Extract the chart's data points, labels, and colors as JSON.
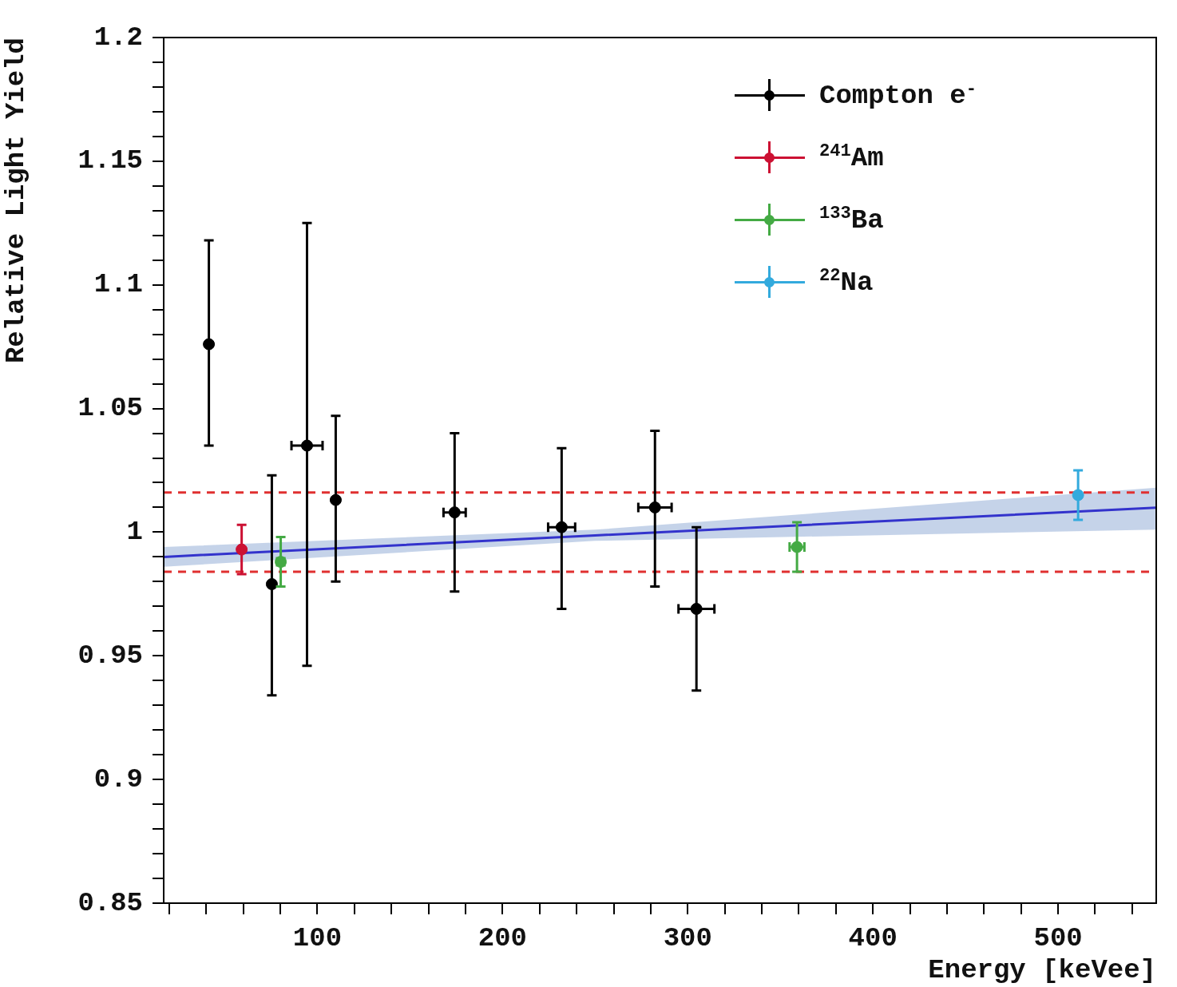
{
  "chart_data": {
    "type": "scatter",
    "xlabel": "Energy [keVee]",
    "ylabel": "Relative Light Yield",
    "xlim": [
      17,
      553
    ],
    "ylim": [
      0.85,
      1.2
    ],
    "xticks": [
      {
        "value": 20,
        "label": null
      },
      {
        "value": 40,
        "label": null
      },
      {
        "value": 60,
        "label": null
      },
      {
        "value": 80,
        "label": null
      },
      100,
      {
        "value": 120,
        "label": null
      },
      {
        "value": 140,
        "label": null
      },
      {
        "value": 160,
        "label": null
      },
      {
        "value": 180,
        "label": null
      },
      200,
      {
        "value": 220,
        "label": null
      },
      {
        "value": 240,
        "label": null
      },
      {
        "value": 260,
        "label": null
      },
      {
        "value": 280,
        "label": null
      },
      300,
      {
        "value": 320,
        "label": null
      },
      {
        "value": 340,
        "label": null
      },
      {
        "value": 360,
        "label": null
      },
      {
        "value": 380,
        "label": null
      },
      400,
      {
        "value": 420,
        "label": null
      },
      {
        "value": 440,
        "label": null
      },
      {
        "value": 460,
        "label": null
      },
      {
        "value": 480,
        "label": null
      },
      500,
      {
        "value": 520,
        "label": null
      },
      {
        "value": 540,
        "label": null
      }
    ],
    "yticks": [
      {
        "value": 0.85,
        "label": "0.85"
      },
      {
        "value": 0.86,
        "label": null
      },
      {
        "value": 0.87,
        "label": null
      },
      {
        "value": 0.88,
        "label": null
      },
      {
        "value": 0.89,
        "label": null
      },
      {
        "value": 0.9,
        "label": "0.9"
      },
      {
        "value": 0.91,
        "label": null
      },
      {
        "value": 0.92,
        "label": null
      },
      {
        "value": 0.93,
        "label": null
      },
      {
        "value": 0.94,
        "label": null
      },
      {
        "value": 0.95,
        "label": "0.95"
      },
      {
        "value": 0.96,
        "label": null
      },
      {
        "value": 0.97,
        "label": null
      },
      {
        "value": 0.98,
        "label": null
      },
      {
        "value": 0.99,
        "label": null
      },
      {
        "value": 1,
        "label": "1"
      },
      {
        "value": 1.01,
        "label": null
      },
      {
        "value": 1.02,
        "label": null
      },
      {
        "value": 1.03,
        "label": null
      },
      {
        "value": 1.04,
        "label": null
      },
      {
        "value": 1.05,
        "label": "1.05"
      },
      {
        "value": 1.06,
        "label": null
      },
      {
        "value": 1.07,
        "label": null
      },
      {
        "value": 1.08,
        "label": null
      },
      {
        "value": 1.09,
        "label": null
      },
      {
        "value": 1.1,
        "label": "1.1"
      },
      {
        "value": 1.11,
        "label": null
      },
      {
        "value": 1.12,
        "label": null
      },
      {
        "value": 1.13,
        "label": null
      },
      {
        "value": 1.14,
        "label": null
      },
      {
        "value": 1.15,
        "label": "1.15"
      },
      {
        "value": 1.16,
        "label": null
      },
      {
        "value": 1.17,
        "label": null
      },
      {
        "value": 1.18,
        "label": null
      },
      {
        "value": 1.19,
        "label": null
      },
      {
        "value": 1.2,
        "label": "1.2"
      }
    ],
    "grid": false,
    "legend": "top right",
    "marker": "circle",
    "series": [
      {
        "type": "line",
        "marker": "none",
        "color": "#3333cc",
        "x": [
          17,
          250,
          553
        ],
        "values": [
          0.99,
          0.9987,
          1.0099
        ],
        "lower": [
          0.986,
          0.9965,
          1.001
        ],
        "upper": [
          0.994,
          1.001,
          1.018
        ]
      },
      {
        "name": "Compton e$^{-}$",
        "color": "#000000",
        "x": [
          41.4,
          75.4,
          94.4,
          109.9,
          174.1,
          231.9,
          282.3,
          304.7
        ],
        "values": [
          1.076,
          0.979,
          1.035,
          1.013,
          1.008,
          1.002,
          1.01,
          0.969
        ],
        "errors": [
          [
            1.035,
            1.118
          ],
          [
            0.934,
            1.023
          ],
          [
            0.946,
            1.125
          ],
          [
            0.98,
            1.047
          ],
          [
            0.976,
            1.04
          ],
          [
            0.969,
            1.034
          ],
          [
            0.978,
            1.041
          ],
          [
            0.936,
            1.002
          ]
        ],
        "xerrors": [
          null,
          null,
          8.4,
          null,
          6,
          7.3,
          9,
          9.7
        ]
      },
      {
        "name": "$^{241}$Am",
        "color": "#cc1133",
        "x": [
          59.1
        ],
        "values": [
          0.993
        ],
        "errors": [
          [
            0.983,
            1.003
          ]
        ],
        "xerrors": [
          null
        ]
      },
      {
        "name": "$^{133}$Ba",
        "color": "#44aa44",
        "x": [
          80.2,
          359
        ],
        "values": [
          0.988,
          0.994
        ],
        "errors": [
          [
            0.978,
            0.998
          ],
          [
            0.984,
            1.004
          ]
        ],
        "xerrors": [
          2,
          4
        ]
      },
      {
        "name": "$^{22}$Na",
        "color": "#33aadd",
        "x": [
          510.8
        ],
        "values": [
          1.015
        ],
        "errors": [
          [
            1.005,
            1.025
          ]
        ],
        "xerrors": [
          null
        ]
      }
    ],
    "ref_lines": [
      {
        "axis": "y",
        "value": 1.016,
        "color": "#e03030",
        "line_style": "dashed"
      },
      {
        "axis": "y",
        "value": 0.984,
        "color": "#e03030",
        "line_style": "dashed"
      }
    ]
  }
}
